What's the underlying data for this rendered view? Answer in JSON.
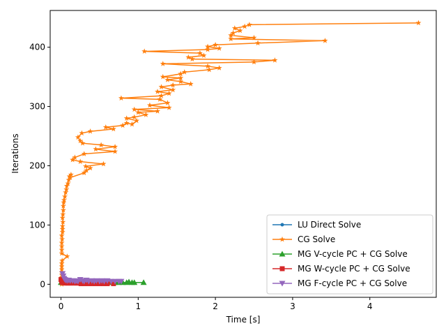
{
  "chart_data": {
    "type": "line",
    "xlabel": "Time [s]",
    "ylabel": "Iterations",
    "xlim": [
      -0.14,
      4.86
    ],
    "ylim": [
      -22,
      462
    ],
    "xticks": [
      0,
      1,
      2,
      3,
      4
    ],
    "yticks": [
      0,
      100,
      200,
      300,
      400
    ],
    "grid": false,
    "legend_position": "lower-right",
    "series": [
      {
        "name": "LU Direct Solve",
        "color": "#1f77b4",
        "marker": "circle",
        "points": [
          [
            0.0,
            1
          ],
          [
            0.001,
            1
          ],
          [
            0.002,
            1
          ],
          [
            0.003,
            1
          ],
          [
            0.004,
            1
          ],
          [
            0.005,
            1
          ],
          [
            0.006,
            1
          ],
          [
            0.008,
            1
          ],
          [
            0.01,
            1
          ],
          [
            0.012,
            1
          ],
          [
            0.015,
            1
          ],
          [
            0.018,
            1
          ],
          [
            0.02,
            1
          ],
          [
            0.025,
            1
          ],
          [
            0.03,
            1
          ],
          [
            0.035,
            1
          ],
          [
            0.04,
            1
          ],
          [
            0.05,
            1
          ],
          [
            0.06,
            1
          ],
          [
            0.07,
            1
          ]
        ]
      },
      {
        "name": "CG Solve",
        "color": "#ff7f0e",
        "marker": "star",
        "points": [
          [
            0.01,
            0
          ],
          [
            0.01,
            2
          ],
          [
            0.01,
            5
          ],
          [
            0.01,
            8
          ],
          [
            0.01,
            12
          ],
          [
            0.01,
            16
          ],
          [
            0.01,
            20
          ],
          [
            0.01,
            25
          ],
          [
            0.01,
            30
          ],
          [
            0.01,
            35
          ],
          [
            0.015,
            40
          ],
          [
            0.08,
            47
          ],
          [
            0.01,
            52
          ],
          [
            0.01,
            58
          ],
          [
            0.01,
            64
          ],
          [
            0.01,
            70
          ],
          [
            0.015,
            76
          ],
          [
            0.01,
            82
          ],
          [
            0.02,
            88
          ],
          [
            0.02,
            93
          ],
          [
            0.02,
            98
          ],
          [
            0.025,
            105
          ],
          [
            0.02,
            112
          ],
          [
            0.025,
            118
          ],
          [
            0.03,
            125
          ],
          [
            0.03,
            132
          ],
          [
            0.035,
            138
          ],
          [
            0.04,
            142
          ],
          [
            0.05,
            148
          ],
          [
            0.06,
            155
          ],
          [
            0.07,
            160
          ],
          [
            0.075,
            166
          ],
          [
            0.09,
            170
          ],
          [
            0.1,
            176
          ],
          [
            0.11,
            182
          ],
          [
            0.13,
            185
          ],
          [
            0.12,
            180
          ],
          [
            0.3,
            188
          ],
          [
            0.33,
            192
          ],
          [
            0.38,
            196
          ],
          [
            0.32,
            199
          ],
          [
            0.55,
            203
          ],
          [
            0.25,
            207
          ],
          [
            0.15,
            210
          ],
          [
            0.18,
            214
          ],
          [
            0.3,
            220
          ],
          [
            0.7,
            224
          ],
          [
            0.45,
            228
          ],
          [
            0.7,
            232
          ],
          [
            0.52,
            235
          ],
          [
            0.28,
            238
          ],
          [
            0.25,
            242
          ],
          [
            0.22,
            248
          ],
          [
            0.27,
            255
          ],
          [
            0.38,
            258
          ],
          [
            0.68,
            262
          ],
          [
            0.58,
            265
          ],
          [
            0.8,
            268
          ],
          [
            0.85,
            272
          ],
          [
            0.92,
            270
          ],
          [
            0.98,
            276
          ],
          [
            0.85,
            280
          ],
          [
            0.95,
            282
          ],
          [
            1.1,
            286
          ],
          [
            1.0,
            290
          ],
          [
            1.25,
            292
          ],
          [
            0.95,
            295
          ],
          [
            1.4,
            298
          ],
          [
            1.15,
            302
          ],
          [
            1.38,
            306
          ],
          [
            1.28,
            312
          ],
          [
            0.78,
            314
          ],
          [
            1.3,
            318
          ],
          [
            1.4,
            322
          ],
          [
            1.25,
            325
          ],
          [
            1.45,
            328
          ],
          [
            1.3,
            333
          ],
          [
            1.45,
            336
          ],
          [
            1.68,
            338
          ],
          [
            1.55,
            342
          ],
          [
            1.38,
            345
          ],
          [
            1.55,
            348
          ],
          [
            1.32,
            350
          ],
          [
            1.55,
            355
          ],
          [
            1.6,
            358
          ],
          [
            1.92,
            362
          ],
          [
            2.05,
            365
          ],
          [
            1.9,
            368
          ],
          [
            1.32,
            372
          ],
          [
            2.5,
            375
          ],
          [
            2.77,
            378
          ],
          [
            1.7,
            380
          ],
          [
            1.65,
            383
          ],
          [
            1.85,
            386
          ],
          [
            1.8,
            390
          ],
          [
            1.08,
            393
          ],
          [
            1.9,
            396
          ],
          [
            2.05,
            398
          ],
          [
            1.9,
            401
          ],
          [
            2.0,
            404
          ],
          [
            2.55,
            407
          ],
          [
            3.42,
            411
          ],
          [
            2.2,
            414
          ],
          [
            2.5,
            416
          ],
          [
            2.2,
            420
          ],
          [
            2.23,
            424
          ],
          [
            2.32,
            428
          ],
          [
            2.25,
            432
          ],
          [
            2.38,
            435
          ],
          [
            2.44,
            438
          ],
          [
            4.63,
            441
          ]
        ]
      },
      {
        "name": "MG V-cycle PC + CG Solve",
        "color": "#2ca02c",
        "marker": "triangle-up",
        "points": [
          [
            0.0,
            3
          ],
          [
            0.02,
            3
          ],
          [
            0.05,
            3
          ],
          [
            0.1,
            3
          ],
          [
            0.15,
            3
          ],
          [
            0.2,
            3
          ],
          [
            0.25,
            3
          ],
          [
            0.3,
            3
          ],
          [
            0.35,
            3
          ],
          [
            0.4,
            3
          ],
          [
            0.45,
            3
          ],
          [
            0.5,
            3
          ],
          [
            0.55,
            3
          ],
          [
            0.6,
            3
          ],
          [
            0.65,
            3
          ],
          [
            0.7,
            3
          ],
          [
            0.75,
            3
          ],
          [
            0.8,
            3
          ],
          [
            0.85,
            3
          ],
          [
            0.88,
            4
          ],
          [
            0.92,
            3
          ],
          [
            0.95,
            3
          ],
          [
            1.07,
            3
          ]
        ]
      },
      {
        "name": "MG W-cycle PC + CG Solve",
        "color": "#d62728",
        "marker": "square",
        "points": [
          [
            0.0,
            8
          ],
          [
            0.01,
            4
          ],
          [
            0.02,
            3
          ],
          [
            0.03,
            3
          ],
          [
            0.05,
            2
          ],
          [
            0.08,
            2
          ],
          [
            0.1,
            2
          ],
          [
            0.13,
            2
          ],
          [
            0.16,
            2
          ],
          [
            0.18,
            4
          ],
          [
            0.2,
            2
          ],
          [
            0.22,
            2
          ],
          [
            0.26,
            1
          ],
          [
            0.3,
            1
          ],
          [
            0.35,
            1
          ],
          [
            0.4,
            1
          ],
          [
            0.45,
            1
          ],
          [
            0.5,
            1
          ],
          [
            0.55,
            1
          ],
          [
            0.6,
            1
          ],
          [
            0.68,
            1
          ]
        ]
      },
      {
        "name": "MG F-cycle PC + CG Solve",
        "color": "#9467bd",
        "marker": "triangle-down",
        "points": [
          [
            0.02,
            18
          ],
          [
            0.03,
            14
          ],
          [
            0.04,
            10
          ],
          [
            0.05,
            8
          ],
          [
            0.06,
            7
          ],
          [
            0.08,
            6
          ],
          [
            0.1,
            7
          ],
          [
            0.12,
            6
          ],
          [
            0.15,
            6
          ],
          [
            0.18,
            5
          ],
          [
            0.2,
            6
          ],
          [
            0.22,
            5
          ],
          [
            0.25,
            8
          ],
          [
            0.28,
            6
          ],
          [
            0.3,
            5
          ],
          [
            0.33,
            7
          ],
          [
            0.36,
            5
          ],
          [
            0.4,
            6
          ],
          [
            0.43,
            5
          ],
          [
            0.46,
            6
          ],
          [
            0.5,
            5
          ],
          [
            0.53,
            6
          ],
          [
            0.56,
            5
          ],
          [
            0.6,
            6
          ],
          [
            0.65,
            5
          ],
          [
            0.7,
            5
          ],
          [
            0.75,
            5
          ],
          [
            0.78,
            5
          ]
        ]
      }
    ]
  }
}
